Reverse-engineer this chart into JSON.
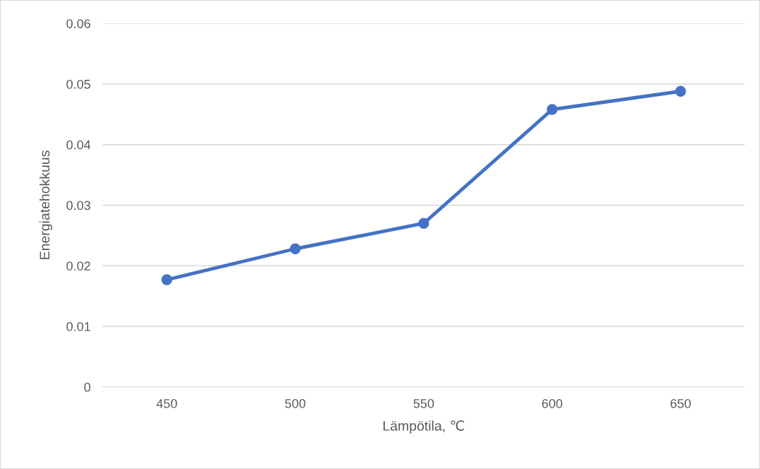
{
  "chart_data": {
    "type": "line",
    "xlabel": "Lämpötila, ℃",
    "ylabel": "Energiatehokkuus",
    "categories": [
      "450",
      "500",
      "550",
      "600",
      "650"
    ],
    "series": [
      {
        "color": "#4472c4",
        "values": [
          0.0177,
          0.0228,
          0.027,
          0.0458,
          0.0488
        ]
      }
    ],
    "ylim": [
      0,
      0.06
    ],
    "yticks": [
      {
        "value": 0,
        "label": "0"
      },
      0.01,
      0.02,
      0.03,
      0.04,
      0.05,
      0.06
    ],
    "grid": "y",
    "marker": "circle",
    "line_style": "solid"
  }
}
